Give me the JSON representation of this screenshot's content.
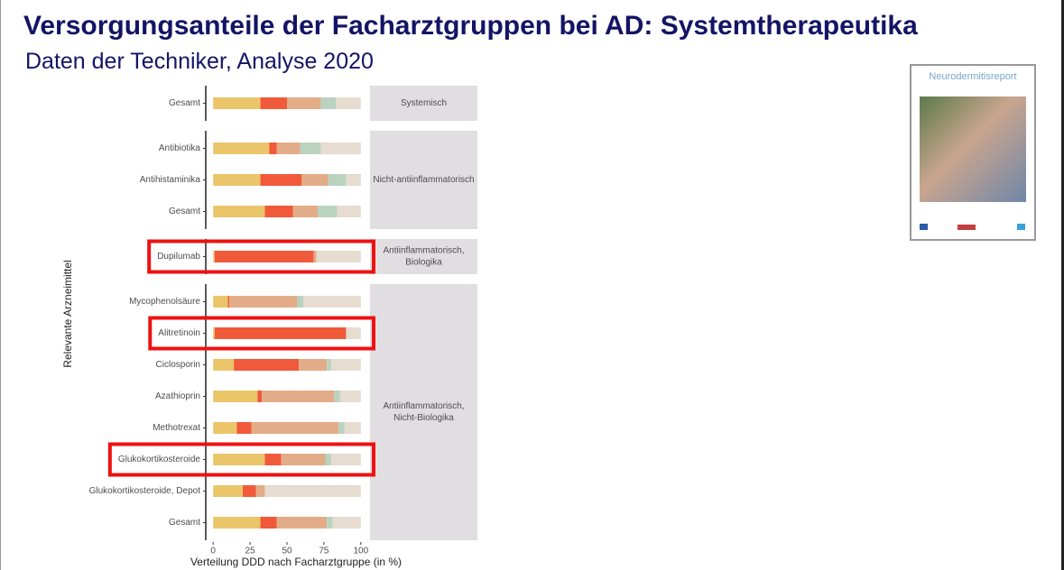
{
  "header": {
    "title": "Versorgungsanteile der Facharztgruppen bei AD: Systemtherapeutika",
    "subtitle": "Daten der Techniker, Analyse 2020"
  },
  "report": {
    "title": "Neurodermitisreport"
  },
  "chart_data": {
    "type": "stacked-bar-horizontal",
    "ylabel": "Relevante Arzneimittel",
    "xlabel": "Verteilung DDD nach Facharztgruppe (in %)",
    "xlim": [
      -5,
      105
    ],
    "xticks": [
      0,
      25,
      50,
      75,
      100
    ],
    "colors": [
      "#ebc56a",
      "#f05a3a",
      "#e3ac88",
      "#b9d3c0",
      "#e6dccf"
    ],
    "panels": [
      {
        "strip": [
          "Systemisch"
        ],
        "categories": [
          "Gesamt"
        ],
        "highlight": [],
        "values": [
          [
            32,
            18,
            23,
            10,
            17
          ]
        ]
      },
      {
        "strip": [
          "Nicht-antiinflammatorisch"
        ],
        "categories": [
          "Antibiotika",
          "Antihistaminika",
          "Gesamt"
        ],
        "highlight": [],
        "values": [
          [
            38,
            5,
            16,
            14,
            27
          ],
          [
            32,
            28,
            18,
            12,
            10
          ],
          [
            35,
            19,
            17,
            13,
            16
          ]
        ]
      },
      {
        "strip": [
          "Antiinflammatorisch,",
          "Biologika"
        ],
        "categories": [
          "Dupilumab"
        ],
        "highlight": [
          0
        ],
        "values": [
          [
            1,
            67,
            2,
            0,
            30
          ]
        ]
      },
      {
        "strip": [
          "Antiinflammatorisch,",
          "Nicht-Biologika"
        ],
        "categories": [
          "Mycophenolsäure",
          "Alitretinoin",
          "Ciclosporin",
          "Azathioprin",
          "Methotrexat",
          "Glukokortikosteroide",
          "Glukokortikosteroide,  Depot",
          "Gesamt"
        ],
        "highlight": [
          1,
          5
        ],
        "values": [
          [
            10,
            1,
            46,
            4,
            39
          ],
          [
            1,
            89,
            0,
            0,
            10
          ],
          [
            14,
            44,
            19,
            3,
            20
          ],
          [
            30,
            3,
            49,
            4,
            14
          ],
          [
            16,
            10,
            59,
            4,
            11
          ],
          [
            35,
            11,
            30,
            4,
            20
          ],
          [
            20,
            9,
            6,
            0,
            65
          ],
          [
            32,
            11,
            34,
            4,
            19
          ]
        ]
      }
    ]
  }
}
